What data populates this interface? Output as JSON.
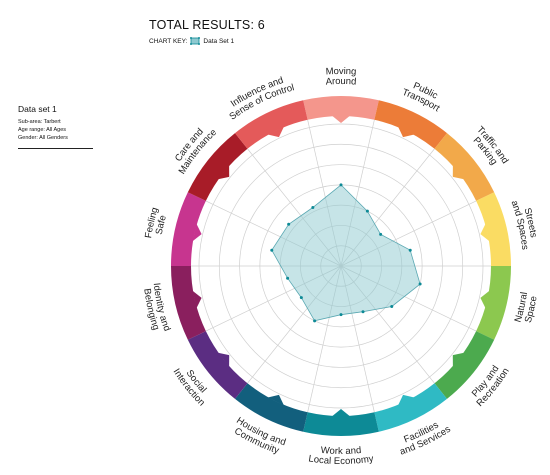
{
  "header": {
    "total_results": "TOTAL RESULTS: 6",
    "chart_key_label": "CHART KEY:",
    "chart_key_series": "Data Set 1"
  },
  "dataset_panel": {
    "title": "Data set 1",
    "sub_area": "Sub-area: Tarbert",
    "age_range": "Age range: All Ages",
    "gender": "Gender: All Genders"
  },
  "chart_data": {
    "type": "radar",
    "title": "",
    "scale": [
      0,
      7
    ],
    "grid": true,
    "categories": [
      "Moving Around",
      "Public Transport",
      "Traffic and Parking",
      "Streets and Spaces",
      "Natural Space",
      "Play and Recreation",
      "Facilities and Services",
      "Work and Local Economy",
      "Housing and Community",
      "Social Interaction",
      "Identity and Belonging",
      "Feeling Safe",
      "Care and Maintenance",
      "Influence and Sense of Control"
    ],
    "label_lines": [
      [
        "Moving",
        "Around"
      ],
      [
        "Public",
        "Transport"
      ],
      [
        "Traffic and",
        "Parking"
      ],
      [
        "Streets",
        "and Spaces"
      ],
      [
        "Natural",
        "Space"
      ],
      [
        "Play and",
        "Recreation"
      ],
      [
        "Facilities",
        "and Services"
      ],
      [
        "Work and",
        "Local Economy"
      ],
      [
        "Housing and",
        "Community"
      ],
      [
        "Social",
        "Interaction"
      ],
      [
        "Identity and",
        "Belonging"
      ],
      [
        "Feeling",
        "Safe"
      ],
      [
        "Care and",
        "Maintenance"
      ],
      [
        "Influence and",
        "Sense of Control"
      ]
    ],
    "segment_colors": [
      "#f4968c",
      "#ec7c38",
      "#f2a94a",
      "#fadc63",
      "#8cc84f",
      "#4caa4e",
      "#2fbac4",
      "#0d8a96",
      "#125f7d",
      "#5b2d82",
      "#8a1f5e",
      "#c7358f",
      "#a81c28",
      "#e45a5a"
    ],
    "series": [
      {
        "name": "Data Set 1",
        "color": "#8ec9d0",
        "values": [
          4.0,
          3.0,
          2.5,
          3.5,
          4.0,
          3.2,
          2.5,
          2.4,
          3.0,
          2.5,
          2.7,
          3.5,
          3.3,
          3.2
        ]
      }
    ]
  }
}
